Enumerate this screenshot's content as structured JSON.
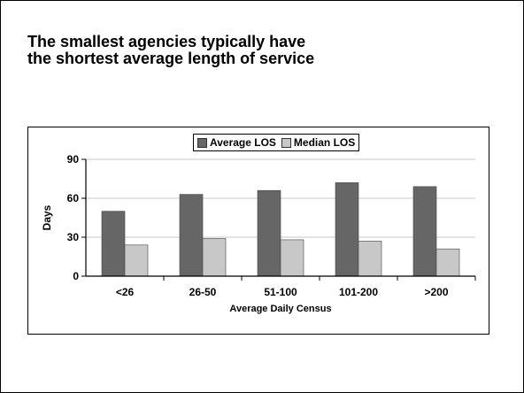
{
  "slide": {
    "title_line1": "The smallest agencies typically have",
    "title_line2": "the shortest average length of service"
  },
  "chart_data": {
    "type": "bar",
    "categories": [
      "<26",
      "26-50",
      "51-100",
      "101-200",
      ">200"
    ],
    "series": [
      {
        "name": "Average LOS",
        "values": [
          50,
          63,
          66,
          72,
          69
        ],
        "color": "#666666"
      },
      {
        "name": "Median LOS",
        "values": [
          24,
          29,
          28,
          27,
          21
        ],
        "color": "#c8c8c8"
      }
    ],
    "xlabel": "Average Daily Census",
    "ylabel": "Days",
    "ylim": [
      0,
      90
    ],
    "yticks": [
      0,
      30,
      60,
      90
    ],
    "grid": true,
    "legend": "top-center"
  }
}
